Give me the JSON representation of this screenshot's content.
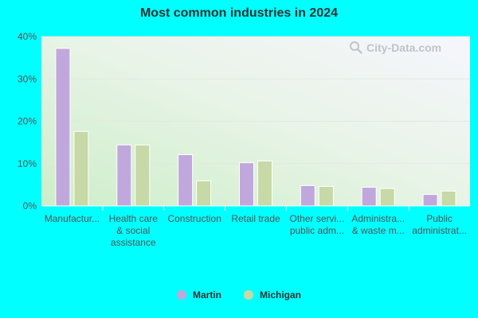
{
  "chart_data": {
    "type": "bar",
    "title": "Most common industries in 2024",
    "xlabel": "",
    "ylabel": "",
    "ylim": [
      0,
      40
    ],
    "yticks": [
      "0%",
      "10%",
      "20%",
      "30%",
      "40%"
    ],
    "categories": [
      [
        "Manufactur..."
      ],
      [
        "Health care",
        "& social",
        "assistance"
      ],
      [
        "Construction"
      ],
      [
        "Retail trade"
      ],
      [
        "Other servi...",
        "public adm..."
      ],
      [
        "Administra...",
        "& waste m..."
      ],
      [
        "Public",
        "administrat..."
      ]
    ],
    "series": [
      {
        "name": "Martin",
        "color": "#c0a8dc",
        "values": [
          37.2,
          14.4,
          12.1,
          10.2,
          4.8,
          4.4,
          2.7
        ]
      },
      {
        "name": "Michigan",
        "color": "#c6d9a6",
        "values": [
          17.6,
          14.4,
          5.9,
          10.6,
          4.6,
          4.1,
          3.5
        ]
      }
    ],
    "legend_position": "bottom",
    "grid": true
  },
  "watermark": {
    "text": "City-Data.com",
    "icon": "magnifier-icon"
  }
}
